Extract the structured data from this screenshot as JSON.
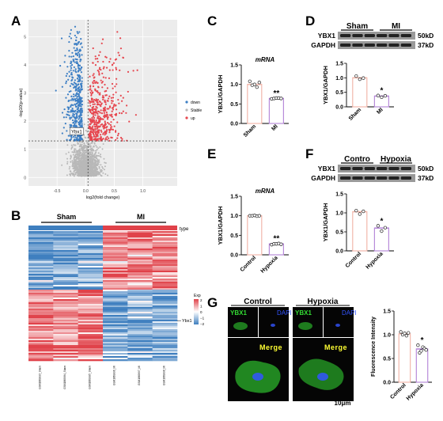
{
  "panels": {
    "A": "A",
    "B": "B",
    "C": "C",
    "D": "D",
    "E": "E",
    "F": "F",
    "G": "G"
  },
  "colors": {
    "down": "#3d7fc4",
    "stable": "#b8b8b8",
    "up": "#e6474f",
    "bar_ctrl": "#f2b8ac",
    "bar_treat": "#b88bd9",
    "heat_sham": "#3f7fbf",
    "heat_mi": "#e0424a",
    "fluor_green": "#33dd33",
    "fluor_blue": "#3355ff",
    "label_yellow": "#ffff33"
  },
  "chart_data": [
    {
      "id": "A",
      "type": "scatter",
      "title": "",
      "xlabel": "log2(fold change)",
      "ylabel": "-log10(p-value)",
      "xlim": [
        -1.0,
        1.6
      ],
      "ylim": [
        -0.3,
        5.6
      ],
      "xticks": [
        "-0.5",
        "0.0",
        "0.5",
        "1.0"
      ],
      "yticks": [
        "0",
        "1",
        "2",
        "3",
        "4",
        "5"
      ],
      "legend": [
        "down",
        "Stable",
        "up"
      ],
      "legend_position": "right",
      "fc_threshold": [
        -0.05,
        0.05
      ],
      "p_threshold": 1.3,
      "annotation": "Ybx1",
      "highlight_point": {
        "x": -0.08,
        "y": 1.6
      }
    },
    {
      "id": "B",
      "type": "heatmap",
      "groups": [
        "Sham",
        "MI"
      ],
      "type_label": "type",
      "legend_title": "Exp",
      "legend_ticks": [
        "2",
        "1",
        "0",
        "−1",
        "−2"
      ],
      "row_annotation": "Ybx1",
      "columns": [
        "GSM1869993_Sham",
        "GSM1869994_Sham",
        "GSM1869995_Sham",
        "GSM1869996_MI",
        "GSM1869997_MI",
        "GSM1869998_MI"
      ]
    },
    {
      "id": "C",
      "type": "bar",
      "title": "mRNA",
      "ylabel": "YBX1/GAPDH",
      "categories": [
        "Sham",
        "MI"
      ],
      "values": [
        1.0,
        0.64
      ],
      "points": [
        [
          1.08,
          0.98,
          1.0,
          0.93,
          1.05
        ],
        [
          0.63,
          0.64,
          0.65,
          0.65,
          0.64
        ]
      ],
      "ylim": [
        0,
        1.5
      ],
      "yticks": [
        "0.0",
        "0.5",
        "1.0",
        "1.5"
      ],
      "significance": "**"
    },
    {
      "id": "D",
      "type": "bar",
      "ylabel": "YBX1/GAPDH",
      "categories": [
        "Sham",
        "MI"
      ],
      "values": [
        1.0,
        0.37
      ],
      "points": [
        [
          1.06,
          0.95,
          0.99
        ],
        [
          0.39,
          0.33,
          0.38
        ]
      ],
      "ylim": [
        0,
        1.5
      ],
      "yticks": [
        "0.0",
        "0.5",
        "1.0",
        "1.5"
      ],
      "significance": "*",
      "blot": {
        "groups": [
          "Sham",
          "MI"
        ],
        "rows": [
          "YBX1",
          "GAPDH"
        ],
        "sizes": [
          "50kD",
          "37kD"
        ]
      }
    },
    {
      "id": "E",
      "type": "bar",
      "title": "mRNA",
      "ylabel": "YBX1/GAPDH",
      "categories": [
        "Control",
        "Hypoxia"
      ],
      "values": [
        1.0,
        0.28
      ],
      "points": [
        [
          1.0,
          1.0,
          1.01,
          0.99,
          1.0
        ],
        [
          0.26,
          0.28,
          0.28,
          0.29,
          0.27
        ]
      ],
      "ylim": [
        0,
        1.5
      ],
      "yticks": [
        "0.0",
        "0.5",
        "1.0",
        "1.5"
      ],
      "significance": "**"
    },
    {
      "id": "F",
      "type": "bar",
      "ylabel": "YBX1/GAPDH",
      "categories": [
        "Control",
        "Hypoxia"
      ],
      "values": [
        1.03,
        0.6
      ],
      "points": [
        [
          1.06,
          0.97,
          1.04
        ],
        [
          0.66,
          0.52,
          0.61
        ]
      ],
      "ylim": [
        0,
        1.5
      ],
      "yticks": [
        "0.0",
        "0.5",
        "1.0",
        "1.5"
      ],
      "significance": "*",
      "blot": {
        "groups": [
          "Contro",
          "Hypoxia"
        ],
        "rows": [
          "YBX1",
          "GAPDH"
        ],
        "sizes": [
          "50kD",
          "37kD"
        ]
      }
    },
    {
      "id": "G",
      "type": "bar",
      "ylabel": "Fluorescence Intensity",
      "categories": [
        "Control",
        "Hypoxia"
      ],
      "values": [
        1.02,
        0.7
      ],
      "points": [
        [
          1.06,
          1.0,
          1.03,
          0.98,
          1.04
        ],
        [
          0.78,
          0.62,
          0.66,
          0.74,
          0.71,
          0.68
        ]
      ],
      "ylim": [
        0,
        1.5
      ],
      "yticks": [
        "0.0",
        "0.5",
        "1.0",
        "1.5"
      ],
      "significance": "*",
      "images": {
        "groups": [
          "Control",
          "Hypoxia"
        ],
        "channels": [
          "YBX1",
          "DAPI",
          "Merge"
        ],
        "scale_bar": "10μm"
      }
    }
  ]
}
